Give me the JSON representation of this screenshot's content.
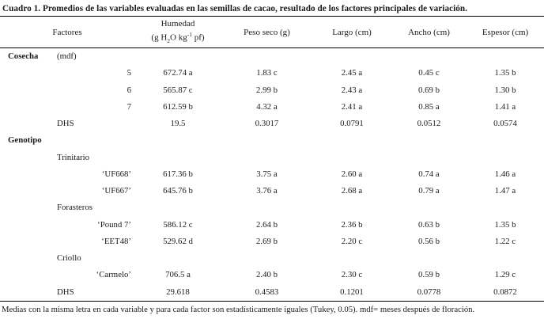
{
  "title": "Cuadro 1. Promedios de las variables evaluadas en las semillas de cacao, resultado de los factores principales de variación.",
  "table": {
    "headers": {
      "factores": "Factores",
      "humedad_line1": "Humedad",
      "humedad_unit_prefix": "(g H",
      "humedad_unit_sub": "2",
      "humedad_unit_mid": "O kg",
      "humedad_unit_sup": "-1",
      "humedad_unit_suffix": " pf)",
      "peso_seco": "Peso seco (g)",
      "largo": "Largo (cm)",
      "ancho": "Ancho (cm)",
      "espesor": "Espesor (cm)"
    },
    "rows": [
      {
        "group": "Cosecha",
        "sub": "(mdf)",
        "level": "",
        "values": [
          "",
          "",
          "",
          "",
          ""
        ]
      },
      {
        "group": "",
        "sub": "",
        "level": "5",
        "values": [
          "672.74 a",
          "1.83 c",
          "2.45 a",
          "0.45 c",
          "1.35 b"
        ]
      },
      {
        "group": "",
        "sub": "",
        "level": "6",
        "values": [
          "565.87 c",
          "2.99 b",
          "2.43 a",
          "0.69 b",
          "1.30 b"
        ]
      },
      {
        "group": "",
        "sub": "",
        "level": "7",
        "values": [
          "612.59 b",
          "4.32 a",
          "2.41 a",
          "0.85 a",
          "1.41 a"
        ]
      },
      {
        "group": "",
        "sub": "DHS",
        "level": "",
        "values": [
          "19.5",
          "0.3017",
          "0.0791",
          "0.0512",
          "0.0574"
        ]
      },
      {
        "group": "Genotipo",
        "sub": "",
        "level": "",
        "values": [
          "",
          "",
          "",
          "",
          ""
        ]
      },
      {
        "group": "",
        "sub": "Trinitario",
        "level": "",
        "values": [
          "",
          "",
          "",
          "",
          ""
        ]
      },
      {
        "group": "",
        "sub": "",
        "level": "‘UF668’",
        "values": [
          "617.36 b",
          "3.75 a",
          "2.60 a",
          "0.74 a",
          "1.46 a"
        ]
      },
      {
        "group": "",
        "sub": "",
        "level": "‘UF667’",
        "values": [
          "645.76 b",
          "3.76 a",
          "2.68 a",
          "0.79 a",
          "1.47 a"
        ]
      },
      {
        "group": "",
        "sub": "Forasteros",
        "level": "",
        "values": [
          "",
          "",
          "",
          "",
          ""
        ]
      },
      {
        "group": "",
        "sub": "",
        "level": "‘Pound 7’",
        "values": [
          "586.12 c",
          "2.64 b",
          "2.36 b",
          "0.63 b",
          "1.35 b"
        ]
      },
      {
        "group": "",
        "sub": "",
        "level": "‘EET48’",
        "values": [
          "529.62 d",
          "2.69 b",
          "2.20 c",
          "0.56 b",
          "1.22 c"
        ]
      },
      {
        "group": "",
        "sub": "Criollo",
        "level": "",
        "values": [
          "",
          "",
          "",
          "",
          ""
        ]
      },
      {
        "group": "",
        "sub": "",
        "level": "‘Carmelo’",
        "values": [
          "706.5 a",
          "2.40 b",
          "2.30 c",
          "0.59 b",
          "1.29 c"
        ]
      },
      {
        "group": "",
        "sub": "DHS",
        "level": "",
        "values": [
          "29.618",
          "0.4583",
          "0.1201",
          "0.0778",
          "0.0872"
        ]
      }
    ]
  },
  "footnote": "Medias con la misma letra en cada variable y para cada factor son estadísticamente iguales (Tukey, 0.05). mdf= meses después de floración."
}
